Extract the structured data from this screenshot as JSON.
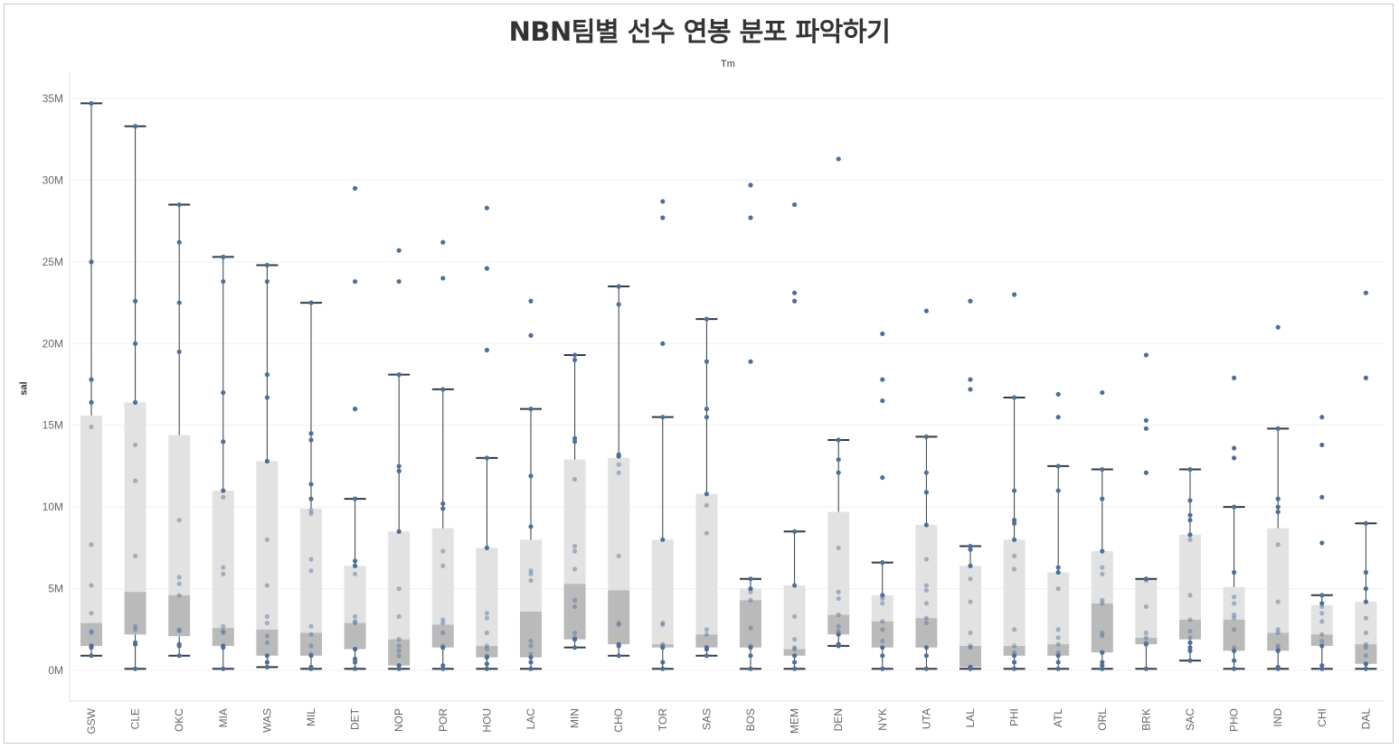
{
  "title": "NBN팀별 선수 연봉 분포 파악하기",
  "column_header": "Tm",
  "colors": {
    "upper_box": "#e2e2e2",
    "lower_box": "#bababa",
    "point": "#4e6f96",
    "whisker": "#333a44",
    "grid": "#efefef"
  },
  "chart_data": {
    "type": "box",
    "xlabel": "Tm",
    "ylabel": "sal",
    "ylim": [
      -1800000,
      37500000
    ],
    "yticks": [
      {
        "value": 0,
        "label": "0M"
      },
      {
        "value": 5000000,
        "label": "5M"
      },
      {
        "value": 10000000,
        "label": "10M"
      },
      {
        "value": 15000000,
        "label": "15M"
      },
      {
        "value": 20000000,
        "label": "20M"
      },
      {
        "value": 25000000,
        "label": "25M"
      },
      {
        "value": 30000000,
        "label": "30M"
      },
      {
        "value": 35000000,
        "label": "35M"
      }
    ],
    "categories": [
      "GSW",
      "CLE",
      "OKC",
      "MIA",
      "WAS",
      "MIL",
      "DET",
      "NOP",
      "POR",
      "HOU",
      "LAC",
      "MIN",
      "CHO",
      "TOR",
      "SAS",
      "BOS",
      "MEM",
      "DEN",
      "NYK",
      "UTA",
      "LAL",
      "PHI",
      "ATL",
      "ORL",
      "BRK",
      "SAC",
      "PHO",
      "IND",
      "CHI",
      "DAL"
    ],
    "teams": [
      {
        "team": "GSW",
        "min": 0.9,
        "q1": 1.5,
        "median": 2.9,
        "q3": 15.6,
        "max": 34.7,
        "points": [
          34.7,
          25.0,
          17.8,
          16.4,
          14.9,
          7.7,
          5.2,
          3.5,
          2.4,
          2.3,
          1.5,
          1.4,
          0.9
        ]
      },
      {
        "team": "CLE",
        "min": 0.1,
        "q1": 2.2,
        "median": 4.8,
        "q3": 16.4,
        "max": 33.3,
        "points": [
          33.3,
          22.6,
          20.0,
          16.4,
          13.8,
          11.6,
          7.0,
          2.7,
          2.5,
          1.7,
          1.6,
          0.1
        ]
      },
      {
        "team": "OKC",
        "min": 0.9,
        "q1": 2.1,
        "median": 4.6,
        "q3": 14.4,
        "max": 28.5,
        "points": [
          28.5,
          26.2,
          22.5,
          19.5,
          9.2,
          5.7,
          5.3,
          4.6,
          2.5,
          2.4,
          1.6,
          1.5,
          0.9
        ]
      },
      {
        "team": "MIA",
        "min": 0.1,
        "q1": 1.5,
        "median": 2.6,
        "q3": 11.0,
        "max": 25.3,
        "points": [
          25.3,
          23.8,
          17.0,
          14.0,
          11.0,
          10.6,
          6.3,
          5.9,
          2.7,
          2.4,
          2.3,
          1.5,
          1.4,
          0.1
        ]
      },
      {
        "team": "WAS",
        "min": 0.2,
        "q1": 0.9,
        "median": 2.5,
        "q3": 12.8,
        "max": 24.8,
        "points": [
          24.8,
          23.8,
          18.1,
          16.7,
          12.8,
          8.0,
          5.2,
          3.3,
          2.9,
          2.1,
          1.7,
          0.9,
          0.5,
          0.2
        ]
      },
      {
        "team": "MIL",
        "min": 0.1,
        "q1": 0.9,
        "median": 2.3,
        "q3": 9.9,
        "max": 22.5,
        "points": [
          22.5,
          14.5,
          14.1,
          11.4,
          10.5,
          9.8,
          9.6,
          6.8,
          6.1,
          2.7,
          2.2,
          1.5,
          1.0,
          0.9,
          0.2,
          0.1
        ]
      },
      {
        "team": "DET",
        "min": 0.1,
        "q1": 1.3,
        "median": 2.9,
        "q3": 6.4,
        "max": 10.5,
        "points": [
          29.5,
          23.8,
          16.0,
          10.5,
          6.7,
          6.4,
          5.9,
          3.3,
          3.0,
          2.9,
          1.3,
          0.7,
          0.5,
          0.1
        ]
      },
      {
        "team": "NOP",
        "min": 0.1,
        "q1": 0.3,
        "median": 1.9,
        "q3": 8.5,
        "max": 18.1,
        "points": [
          25.7,
          23.8,
          18.1,
          12.5,
          12.2,
          8.5,
          5.0,
          3.3,
          1.9,
          1.5,
          1.2,
          0.9,
          0.3,
          0.1
        ]
      },
      {
        "team": "POR",
        "min": 0.1,
        "q1": 1.4,
        "median": 2.8,
        "q3": 8.7,
        "max": 17.2,
        "points": [
          26.2,
          24.0,
          17.2,
          10.2,
          9.9,
          7.3,
          6.4,
          3.1,
          2.9,
          2.3,
          1.5,
          1.4,
          0.3,
          0.1
        ]
      },
      {
        "team": "HOU",
        "min": 0.1,
        "q1": 0.8,
        "median": 1.5,
        "q3": 7.5,
        "max": 13.0,
        "points": [
          28.3,
          24.6,
          19.6,
          13.0,
          7.5,
          3.5,
          3.2,
          2.3,
          1.5,
          1.3,
          0.9,
          0.8,
          0.4,
          0.1
        ]
      },
      {
        "team": "LAC",
        "min": 0.1,
        "q1": 0.8,
        "median": 3.6,
        "q3": 8.0,
        "max": 16.0,
        "points": [
          22.6,
          20.5,
          16.0,
          11.9,
          8.8,
          6.1,
          5.9,
          5.5,
          1.8,
          1.5,
          1.0,
          0.8,
          0.5,
          0.1
        ]
      },
      {
        "team": "MIN",
        "min": 1.4,
        "q1": 1.9,
        "median": 5.3,
        "q3": 12.9,
        "max": 19.3,
        "points": [
          19.3,
          19.0,
          14.2,
          14.0,
          11.7,
          7.6,
          7.3,
          6.2,
          4.3,
          3.9,
          2.3,
          2.0,
          1.9,
          1.4
        ]
      },
      {
        "team": "CHO",
        "min": 0.9,
        "q1": 1.6,
        "median": 4.9,
        "q3": 13.0,
        "max": 23.5,
        "points": [
          23.5,
          22.4,
          13.2,
          13.1,
          12.6,
          12.1,
          7.0,
          2.9,
          2.8,
          1.6,
          1.5,
          0.9
        ]
      },
      {
        "team": "TOR",
        "min": 0.1,
        "q1": 1.4,
        "median": 1.6,
        "q3": 8.0,
        "max": 15.5,
        "points": [
          28.7,
          27.7,
          20.0,
          15.5,
          8.0,
          2.9,
          2.8,
          1.6,
          1.5,
          1.4,
          0.5,
          0.1
        ]
      },
      {
        "team": "SAS",
        "min": 0.9,
        "q1": 1.4,
        "median": 2.2,
        "q3": 10.8,
        "max": 21.5,
        "points": [
          21.5,
          18.9,
          16.0,
          15.5,
          10.8,
          10.1,
          8.4,
          2.5,
          2.2,
          1.4,
          1.3,
          0.9
        ]
      },
      {
        "team": "BOS",
        "min": 0.1,
        "q1": 1.4,
        "median": 4.3,
        "q3": 5.0,
        "max": 5.6,
        "points": [
          29.7,
          27.7,
          18.9,
          5.6,
          5.0,
          4.8,
          4.3,
          2.6,
          1.5,
          1.4,
          0.9,
          0.1
        ]
      },
      {
        "team": "MEM",
        "min": 0.1,
        "q1": 0.9,
        "median": 1.3,
        "q3": 5.2,
        "max": 8.5,
        "points": [
          28.5,
          23.1,
          22.6,
          8.5,
          5.2,
          3.3,
          1.9,
          1.4,
          1.3,
          0.9,
          0.5,
          0.1
        ]
      },
      {
        "team": "DEN",
        "min": 1.5,
        "q1": 2.2,
        "median": 3.4,
        "q3": 9.7,
        "max": 14.1,
        "points": [
          31.3,
          14.1,
          12.9,
          12.1,
          7.5,
          4.8,
          4.4,
          3.4,
          2.7,
          2.4,
          2.2,
          1.6,
          1.5
        ]
      },
      {
        "team": "NYK",
        "min": 0.1,
        "q1": 1.4,
        "median": 3.0,
        "q3": 4.6,
        "max": 6.6,
        "points": [
          20.6,
          17.8,
          16.5,
          11.8,
          6.6,
          4.6,
          4.4,
          4.1,
          3.0,
          2.5,
          1.8,
          1.4,
          0.9,
          0.1
        ]
      },
      {
        "team": "UTA",
        "min": 0.1,
        "q1": 1.4,
        "median": 3.2,
        "q3": 8.9,
        "max": 14.3,
        "points": [
          22.0,
          14.3,
          12.1,
          10.9,
          8.9,
          6.8,
          5.2,
          4.9,
          4.1,
          3.2,
          2.9,
          1.4,
          0.9,
          0.1
        ]
      },
      {
        "team": "LAL",
        "min": 0.1,
        "q1": 0.2,
        "median": 1.5,
        "q3": 6.4,
        "max": 7.6,
        "points": [
          22.6,
          17.8,
          17.2,
          7.6,
          7.4,
          6.4,
          5.6,
          4.2,
          2.3,
          1.5,
          1.4,
          0.2,
          0.1
        ]
      },
      {
        "team": "PHI",
        "min": 0.1,
        "q1": 0.9,
        "median": 1.5,
        "q3": 8.0,
        "max": 16.7,
        "points": [
          23.0,
          16.7,
          11.0,
          9.2,
          9.0,
          8.0,
          7.0,
          6.2,
          2.5,
          1.5,
          1.1,
          0.9,
          0.5,
          0.1
        ]
      },
      {
        "team": "ATL",
        "min": 0.1,
        "q1": 0.9,
        "median": 1.6,
        "q3": 6.0,
        "max": 12.5,
        "points": [
          16.9,
          15.5,
          12.5,
          11.0,
          6.3,
          6.0,
          5.0,
          2.5,
          2.0,
          1.6,
          1.1,
          0.9,
          0.5,
          0.1
        ]
      },
      {
        "team": "ORL",
        "min": 0.1,
        "q1": 1.1,
        "median": 4.1,
        "q3": 7.3,
        "max": 12.3,
        "points": [
          17.0,
          12.3,
          10.5,
          7.3,
          6.3,
          5.9,
          4.3,
          4.1,
          2.3,
          2.1,
          1.1,
          0.5,
          0.3,
          0.1
        ]
      },
      {
        "team": "BRK",
        "min": 0.1,
        "q1": 1.6,
        "median": 2.0,
        "q3": 5.6,
        "max": 5.6,
        "points": [
          19.3,
          15.3,
          14.8,
          12.1,
          5.6,
          5.5,
          3.9,
          2.3,
          2.0,
          1.7,
          1.6,
          0.1
        ]
      },
      {
        "team": "SAC",
        "min": 0.6,
        "q1": 1.9,
        "median": 3.1,
        "q3": 8.3,
        "max": 12.3,
        "points": [
          12.3,
          10.4,
          9.5,
          9.2,
          8.3,
          8.0,
          4.6,
          3.1,
          2.4,
          2.0,
          1.7,
          1.4,
          1.2,
          0.6
        ]
      },
      {
        "team": "PHO",
        "min": 0.1,
        "q1": 1.2,
        "median": 3.1,
        "q3": 5.1,
        "max": 10.0,
        "points": [
          17.9,
          13.6,
          13.0,
          10.0,
          6.0,
          4.5,
          4.1,
          3.4,
          3.2,
          2.5,
          1.4,
          1.2,
          0.6,
          0.1
        ]
      },
      {
        "team": "IND",
        "min": 0.1,
        "q1": 1.2,
        "median": 2.3,
        "q3": 8.7,
        "max": 14.8,
        "points": [
          21.0,
          14.8,
          10.5,
          10.0,
          9.7,
          7.7,
          4.2,
          2.5,
          2.3,
          1.5,
          1.3,
          1.2,
          0.2,
          0.1
        ]
      },
      {
        "team": "CHI",
        "min": 0.1,
        "q1": 1.5,
        "median": 2.2,
        "q3": 4.0,
        "max": 4.6,
        "points": [
          15.5,
          13.8,
          10.6,
          7.8,
          4.6,
          4.1,
          3.9,
          3.5,
          3.0,
          2.2,
          1.8,
          1.5,
          0.3,
          0.1
        ]
      },
      {
        "team": "DAL",
        "min": 0.1,
        "q1": 0.4,
        "median": 1.6,
        "q3": 4.2,
        "max": 9.0,
        "points": [
          23.1,
          17.9,
          9.0,
          6.0,
          5.0,
          4.2,
          3.2,
          2.3,
          1.6,
          1.4,
          0.9,
          0.4,
          0.1
        ]
      }
    ],
    "value_unit": "M",
    "grid": true
  }
}
